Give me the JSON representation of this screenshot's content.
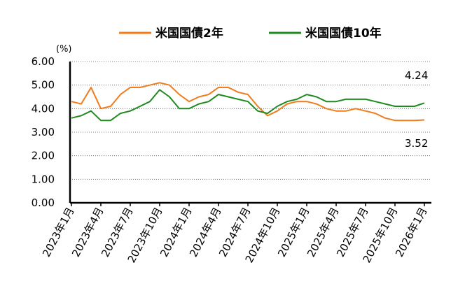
{
  "chart_data": {
    "type": "line",
    "title": "",
    "xlabel": "",
    "ylabel": "",
    "y_unit": "(%)",
    "ylim": [
      0,
      6
    ],
    "y_ticks": [
      "0.00",
      "1.00",
      "2.00",
      "3.00",
      "4.00",
      "5.00",
      "6.00"
    ],
    "x_tick_labels": [
      "2023年1月",
      "2023年4月",
      "2023年7月",
      "2023年10月",
      "2024年1月",
      "2024年4月",
      "2024年7月",
      "2024年10月",
      "2025年1月",
      "2025年4月",
      "2025年7月",
      "2025年10月",
      "2026年1月"
    ],
    "grid": "horizontal dotted",
    "legend_position": "top",
    "colors": {
      "us2y": "#f07c1e",
      "us10y": "#1f8a1f"
    },
    "annotations": [
      "4.24",
      "3.52"
    ],
    "x": [
      "2023-01",
      "2023-02",
      "2023-03",
      "2023-04",
      "2023-05",
      "2023-06",
      "2023-07",
      "2023-08",
      "2023-09",
      "2023-10",
      "2023-11",
      "2023-12",
      "2024-01",
      "2024-02",
      "2024-03",
      "2024-04",
      "2024-05",
      "2024-06",
      "2024-07",
      "2024-08",
      "2024-09",
      "2024-10",
      "2024-11",
      "2024-12",
      "2025-01",
      "2025-02",
      "2025-03",
      "2025-04",
      "2025-05",
      "2025-06",
      "2025-07",
      "2025-08",
      "2025-09",
      "2025-10",
      "2025-11",
      "2025-12",
      "2026-01"
    ],
    "series": [
      {
        "name": "米国国債2年",
        "color_key": "us2y",
        "values": [
          4.3,
          4.2,
          4.9,
          4.0,
          4.1,
          4.6,
          4.9,
          4.9,
          5.0,
          5.1,
          5.0,
          4.6,
          4.3,
          4.5,
          4.6,
          4.9,
          4.9,
          4.7,
          4.6,
          4.1,
          3.7,
          3.9,
          4.2,
          4.3,
          4.3,
          4.2,
          4.0,
          3.9,
          3.9,
          4.0,
          3.9,
          3.8,
          3.6,
          3.5,
          3.5,
          3.5,
          3.52
        ]
      },
      {
        "name": "米国国債10年",
        "color_key": "us10y",
        "values": [
          3.6,
          3.7,
          3.9,
          3.5,
          3.5,
          3.8,
          3.9,
          4.1,
          4.3,
          4.8,
          4.5,
          4.0,
          4.0,
          4.2,
          4.3,
          4.6,
          4.5,
          4.4,
          4.3,
          3.9,
          3.8,
          4.1,
          4.3,
          4.4,
          4.6,
          4.5,
          4.3,
          4.3,
          4.4,
          4.4,
          4.4,
          4.3,
          4.2,
          4.1,
          4.1,
          4.1,
          4.24
        ]
      }
    ]
  }
}
